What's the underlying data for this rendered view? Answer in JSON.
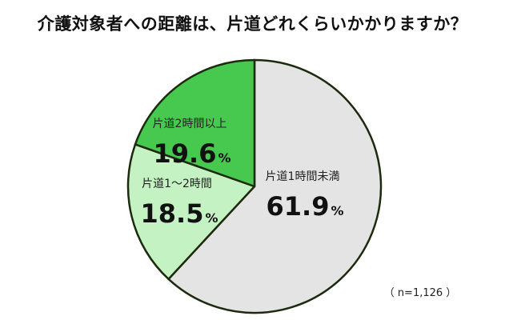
{
  "chart_data": {
    "type": "pie",
    "title": "介護対象者への距離は、片道どれくらいかかりますか？",
    "unit": "%",
    "sample_note": "（ n=1,126 ）",
    "slices": [
      {
        "label": "片道1時間未満",
        "value": 61.9,
        "value_text": "61.9",
        "color": "#e4e4e4"
      },
      {
        "label": "片道1〜2時間",
        "value": 18.5,
        "value_text": "18.5",
        "color": "#c5f2c2"
      },
      {
        "label": "片道2時間以上",
        "value": 19.6,
        "value_text": "19.6",
        "color": "#47c84f"
      }
    ],
    "start_at": "12 o'clock",
    "direction": "clockwise",
    "legend": "none (labels drawn inside slices)"
  }
}
